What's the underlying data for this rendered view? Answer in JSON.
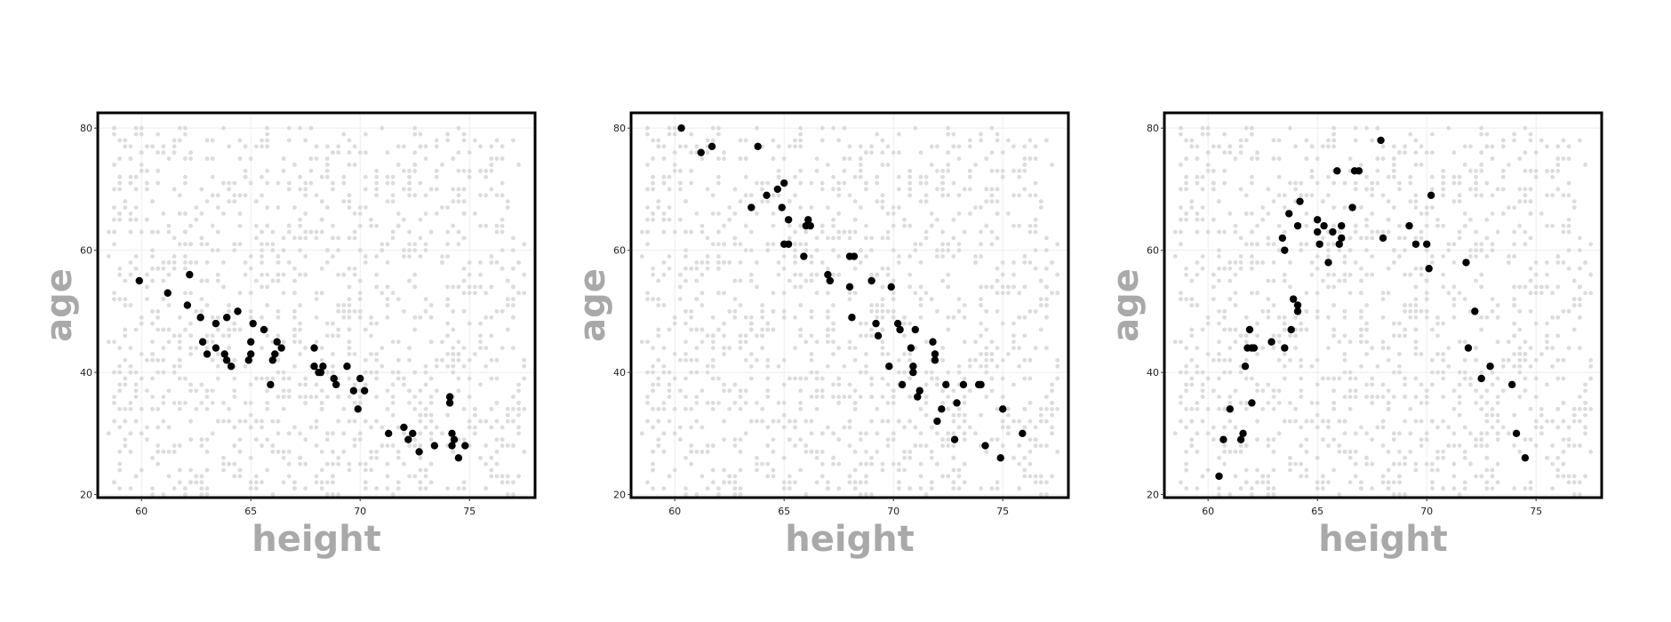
{
  "colors": {
    "background_points": "#dcdcdc",
    "highlight_points": "#000000",
    "axis_title": "#a9a9a9",
    "frame": "#000000",
    "grid": "#eeeeee"
  },
  "chart_data": [
    {
      "type": "scatter",
      "xlabel": "height",
      "ylabel": "age",
      "xlim": [
        58,
        78
      ],
      "ylim": [
        19.5,
        82.5
      ],
      "xticks": [
        60,
        65,
        70,
        75
      ],
      "yticks": [
        20,
        40,
        60,
        80
      ],
      "grid": true,
      "background_points": {
        "seed": 7,
        "count": 1300,
        "x_range": [
          58.5,
          77.5
        ],
        "y_range": [
          20,
          80
        ],
        "x_step": 0.25,
        "y_step": 1
      },
      "highlight": {
        "x": [
          59.9,
          61.2,
          62.1,
          62.2,
          62.7,
          62.8,
          63.0,
          63.4,
          63.4,
          63.8,
          63.9,
          63.9,
          64.1,
          64.4,
          64.9,
          65.0,
          65.0,
          65.1,
          65.6,
          65.9,
          66.0,
          66.1,
          66.2,
          66.4,
          67.9,
          67.9,
          68.1,
          68.2,
          68.3,
          68.8,
          68.9,
          69.4,
          69.7,
          69.9,
          70.0,
          70.2,
          71.3,
          72.0,
          72.2,
          72.4,
          72.7,
          73.4,
          74.1,
          74.1,
          74.2,
          74.2,
          74.3,
          74.5,
          74.8
        ],
        "y": [
          55,
          53,
          51,
          56,
          49,
          45,
          43,
          44,
          48,
          43,
          42,
          49,
          41,
          50,
          42,
          45,
          43,
          48,
          47,
          38,
          42,
          43,
          45,
          44,
          44,
          41,
          40,
          40,
          41,
          39,
          38,
          41,
          37,
          34,
          39,
          37,
          30,
          31,
          29,
          30,
          27,
          28,
          36,
          35,
          30,
          28,
          29,
          26,
          28
        ]
      }
    },
    {
      "type": "scatter",
      "xlabel": "height",
      "ylabel": "age",
      "xlim": [
        58,
        78
      ],
      "ylim": [
        19.5,
        82.5
      ],
      "xticks": [
        60,
        65,
        70,
        75
      ],
      "yticks": [
        20,
        40,
        60,
        80
      ],
      "grid": true,
      "background_points": {
        "seed": 7,
        "count": 1300,
        "x_range": [
          58.5,
          77.5
        ],
        "y_range": [
          20,
          80
        ],
        "x_step": 0.25,
        "y_step": 1
      },
      "highlight": {
        "x": [
          60.3,
          61.2,
          61.7,
          63.5,
          63.8,
          64.2,
          64.7,
          64.9,
          65.0,
          65.0,
          65.2,
          65.2,
          65.9,
          66.0,
          66.1,
          66.2,
          67.0,
          67.1,
          68.0,
          68.0,
          68.1,
          68.2,
          69.0,
          69.2,
          69.3,
          69.8,
          69.9,
          70.2,
          70.3,
          70.4,
          70.8,
          70.9,
          70.9,
          71.0,
          71.1,
          71.2,
          71.8,
          71.9,
          71.9,
          72.0,
          72.2,
          72.4,
          72.8,
          72.9,
          73.2,
          73.9,
          74.0,
          74.2,
          74.9,
          75.0,
          75.9
        ],
        "y": [
          80,
          76,
          77,
          67,
          77,
          69,
          70,
          67,
          71,
          61,
          65,
          61,
          59,
          64,
          65,
          64,
          56,
          55,
          54,
          59,
          49,
          59,
          55,
          48,
          46,
          41,
          54,
          48,
          47,
          38,
          44,
          41,
          40,
          47,
          36,
          37,
          45,
          43,
          42,
          32,
          34,
          38,
          29,
          35,
          38,
          38,
          38,
          28,
          26,
          34,
          30
        ]
      }
    },
    {
      "type": "scatter",
      "xlabel": "height",
      "ylabel": "age",
      "xlim": [
        58,
        78
      ],
      "ylim": [
        19.5,
        82.5
      ],
      "xticks": [
        60,
        65,
        70,
        75
      ],
      "yticks": [
        20,
        40,
        60,
        80
      ],
      "grid": true,
      "background_points": {
        "seed": 7,
        "count": 1300,
        "x_range": [
          58.5,
          77.5
        ],
        "y_range": [
          20,
          80
        ],
        "x_step": 0.25,
        "y_step": 1
      },
      "highlight": {
        "x": [
          60.5,
          60.7,
          61.0,
          61.5,
          61.6,
          61.7,
          61.8,
          61.9,
          62.0,
          62.0,
          62.1,
          62.9,
          63.4,
          63.5,
          63.5,
          63.7,
          63.8,
          63.9,
          64.1,
          64.1,
          64.1,
          64.2,
          65.0,
          65.0,
          65.1,
          65.3,
          65.5,
          65.7,
          65.9,
          66.0,
          66.1,
          66.1,
          66.6,
          66.7,
          66.9,
          67.9,
          68.0,
          69.2,
          69.5,
          70.0,
          70.1,
          70.2,
          71.8,
          71.9,
          72.2,
          72.5,
          72.9,
          73.9,
          74.1,
          74.5
        ],
        "y": [
          23,
          29,
          34,
          29,
          30,
          41,
          44,
          47,
          44,
          35,
          44,
          45,
          62,
          60,
          44,
          66,
          47,
          52,
          64,
          50,
          51,
          68,
          63,
          65,
          61,
          64,
          58,
          63,
          73,
          61,
          64,
          62,
          67,
          73,
          73,
          78,
          62,
          64,
          61,
          61,
          57,
          69,
          58,
          44,
          50,
          39,
          41,
          38,
          30,
          26
        ]
      }
    }
  ]
}
